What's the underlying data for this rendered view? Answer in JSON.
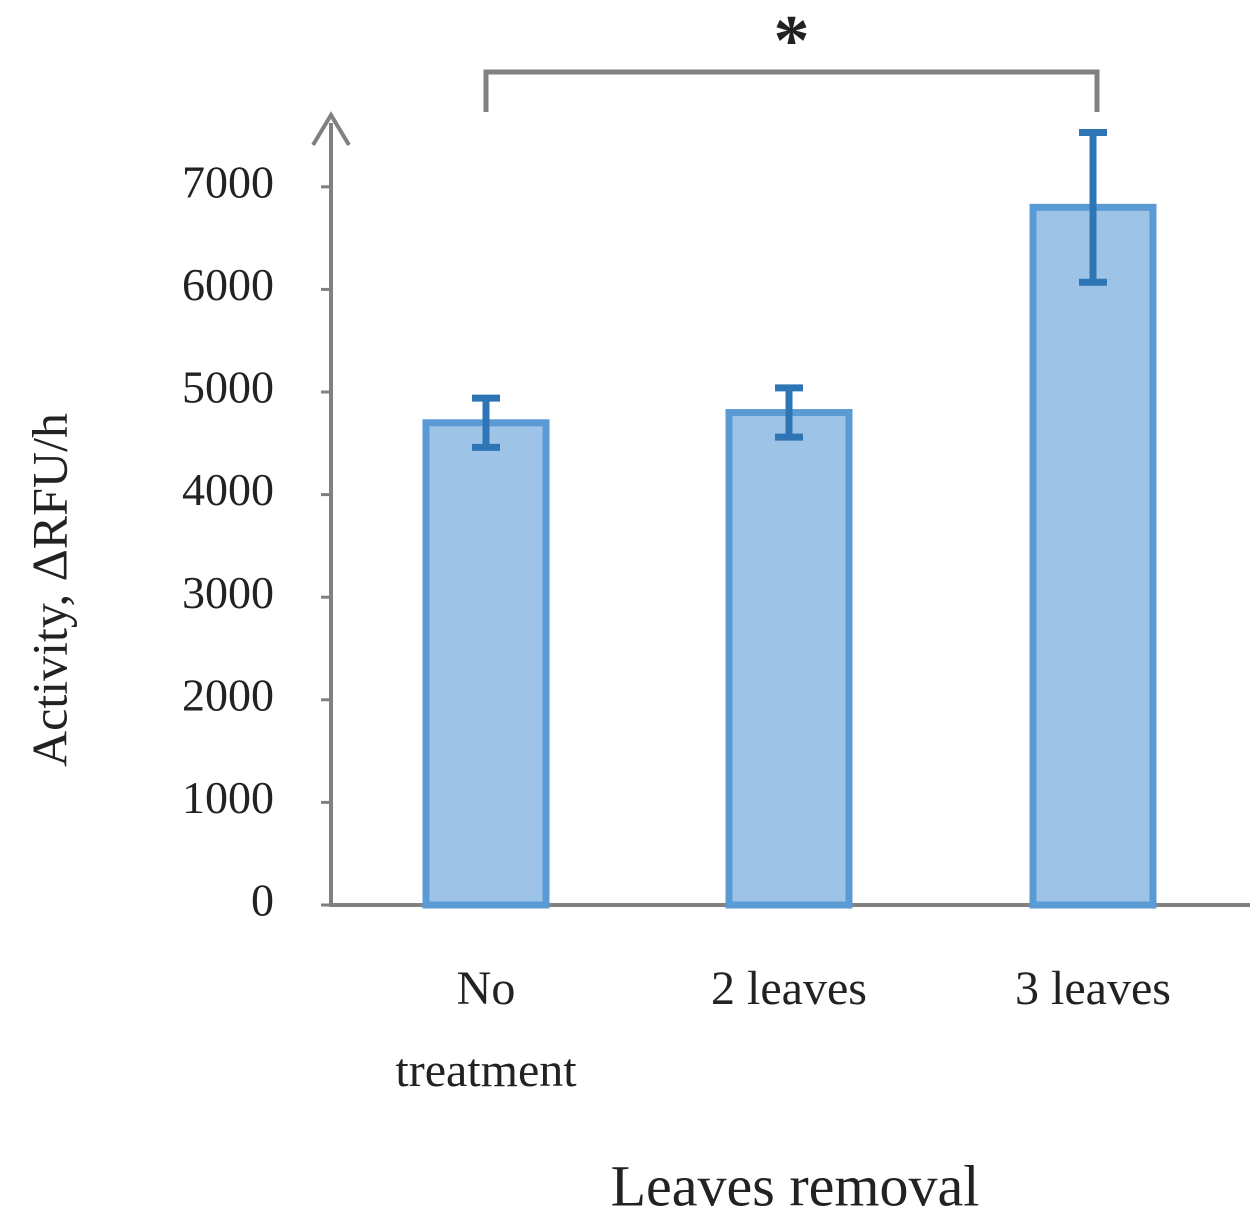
{
  "chart_data": {
    "type": "bar",
    "y_label": "Activity, ΔRFU/h",
    "x_label": "Leaves removal",
    "categories": [
      "No\ntreatment",
      "2 leaves",
      "3 leaves"
    ],
    "values": [
      4700,
      4800,
      6800
    ],
    "errors": [
      240,
      240,
      730
    ],
    "color": "#9dc3e6",
    "edge_color": "#5b9bd5",
    "error_color": "#2e75b6",
    "ylim": [
      0,
      7700
    ],
    "yticks": [
      0,
      1000,
      2000,
      3000,
      4000,
      5000,
      6000,
      7000
    ],
    "grid": false,
    "annotations": [
      {
        "text": "*",
        "from": "No\ntreatment",
        "to": "3 leaves"
      }
    ]
  }
}
